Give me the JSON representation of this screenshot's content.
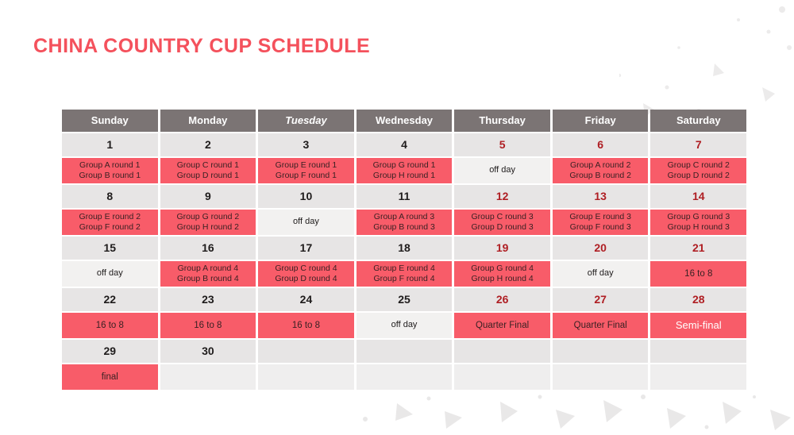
{
  "title": "CHINA COUNTRY CUP SCHEDULE",
  "colors": {
    "title_red": "#F4515C",
    "header_bg": "#7B7474",
    "header_text": "#FFFFFF",
    "date_bg": "#E7E5E5",
    "date_text": "#1F1C1C",
    "date_text_red": "#AF1E23",
    "match_bg": "#F85C69",
    "match_text": "#3A2123",
    "off_bg": "#F2F1F0",
    "off_text": "#1F1C1C",
    "empty_bg": "#EFEEEE",
    "semi_text": "#FFFFFF",
    "texture_gray": "#E9E8E8"
  },
  "calendar": {
    "day_headers": [
      {
        "label": "Sunday",
        "italic": false
      },
      {
        "label": "Monday",
        "italic": false
      },
      {
        "label": "Tuesday",
        "italic": true
      },
      {
        "label": "Wednesday",
        "italic": false
      },
      {
        "label": "Thursday",
        "italic": false
      },
      {
        "label": "Friday",
        "italic": false
      },
      {
        "label": "Saturday",
        "italic": false
      }
    ],
    "weeks": [
      {
        "dates": [
          {
            "label": "1",
            "red": false
          },
          {
            "label": "2",
            "red": false
          },
          {
            "label": "3",
            "red": false
          },
          {
            "label": "4",
            "red": false
          },
          {
            "label": "5",
            "red": true
          },
          {
            "label": "6",
            "red": true
          },
          {
            "label": "7",
            "red": true
          }
        ],
        "events": [
          {
            "type": "match",
            "lines": [
              "Group A round 1",
              "Group B round 1"
            ]
          },
          {
            "type": "match",
            "lines": [
              "Group C round 1",
              "Group D round 1"
            ]
          },
          {
            "type": "match",
            "lines": [
              "Group E round 1",
              "Group F round 1"
            ]
          },
          {
            "type": "match",
            "lines": [
              "Group G round 1",
              "Group H round 1"
            ]
          },
          {
            "type": "off",
            "lines": [
              "off day"
            ]
          },
          {
            "type": "match",
            "lines": [
              "Group A round 2",
              "Group B round 2"
            ]
          },
          {
            "type": "match",
            "lines": [
              "Group C round 2",
              "Group D round 2"
            ]
          }
        ]
      },
      {
        "dates": [
          {
            "label": "8",
            "red": false
          },
          {
            "label": "9",
            "red": false
          },
          {
            "label": "10",
            "red": false
          },
          {
            "label": "11",
            "red": false
          },
          {
            "label": "12",
            "red": true
          },
          {
            "label": "13",
            "red": true
          },
          {
            "label": "14",
            "red": true
          }
        ],
        "events": [
          {
            "type": "match",
            "lines": [
              "Group E round 2",
              "Group F round 2"
            ]
          },
          {
            "type": "match",
            "lines": [
              "Group G round 2",
              "Group H round 2"
            ]
          },
          {
            "type": "off",
            "lines": [
              "off day"
            ]
          },
          {
            "type": "match",
            "lines": [
              "Group A round 3",
              "Group B round 3"
            ]
          },
          {
            "type": "match",
            "lines": [
              "Group C round 3",
              "Group D round 3"
            ]
          },
          {
            "type": "match",
            "lines": [
              "Group E round 3",
              "Group F round 3"
            ]
          },
          {
            "type": "match",
            "lines": [
              "Group G round 3",
              "Group H round 3"
            ]
          }
        ]
      },
      {
        "dates": [
          {
            "label": "15",
            "red": false
          },
          {
            "label": "16",
            "red": false
          },
          {
            "label": "17",
            "red": false
          },
          {
            "label": "18",
            "red": false
          },
          {
            "label": "19",
            "red": true
          },
          {
            "label": "20",
            "red": true
          },
          {
            "label": "21",
            "red": true
          }
        ],
        "events": [
          {
            "type": "off",
            "lines": [
              "off day"
            ]
          },
          {
            "type": "match",
            "lines": [
              "Group A round 4",
              "Group B round 4"
            ]
          },
          {
            "type": "match",
            "lines": [
              "Group C round 4",
              "Group D round 4"
            ]
          },
          {
            "type": "match",
            "lines": [
              "Group E round 4",
              "Group F round 4"
            ]
          },
          {
            "type": "match",
            "lines": [
              "Group G round 4",
              "Group H round 4"
            ]
          },
          {
            "type": "off",
            "lines": [
              "off day"
            ]
          },
          {
            "type": "single",
            "lines": [
              "16 to 8"
            ]
          }
        ]
      },
      {
        "dates": [
          {
            "label": "22",
            "red": false
          },
          {
            "label": "23",
            "red": false
          },
          {
            "label": "24",
            "red": false
          },
          {
            "label": "25",
            "red": false
          },
          {
            "label": "26",
            "red": true
          },
          {
            "label": "27",
            "red": true
          },
          {
            "label": "28",
            "red": true
          }
        ],
        "events": [
          {
            "type": "single",
            "lines": [
              "16 to 8"
            ]
          },
          {
            "type": "single",
            "lines": [
              "16 to 8"
            ]
          },
          {
            "type": "single",
            "lines": [
              "16 to 8"
            ]
          },
          {
            "type": "off",
            "lines": [
              "off day"
            ]
          },
          {
            "type": "single",
            "lines": [
              "Quarter Final"
            ]
          },
          {
            "type": "single",
            "lines": [
              "Quarter Final"
            ]
          },
          {
            "type": "semi",
            "lines": [
              "Semi-final"
            ]
          }
        ]
      },
      {
        "dates": [
          {
            "label": "29",
            "red": false
          },
          {
            "label": "30",
            "red": false
          },
          {
            "label": "",
            "red": false
          },
          {
            "label": "",
            "red": false
          },
          {
            "label": "",
            "red": false
          },
          {
            "label": "",
            "red": false
          },
          {
            "label": "",
            "red": false
          }
        ],
        "events": [
          {
            "type": "single",
            "lines": [
              "final"
            ]
          },
          {
            "type": "empty",
            "lines": []
          },
          {
            "type": "empty",
            "lines": []
          },
          {
            "type": "empty",
            "lines": []
          },
          {
            "type": "empty",
            "lines": []
          },
          {
            "type": "empty",
            "lines": []
          },
          {
            "type": "empty",
            "lines": []
          }
        ]
      }
    ]
  }
}
